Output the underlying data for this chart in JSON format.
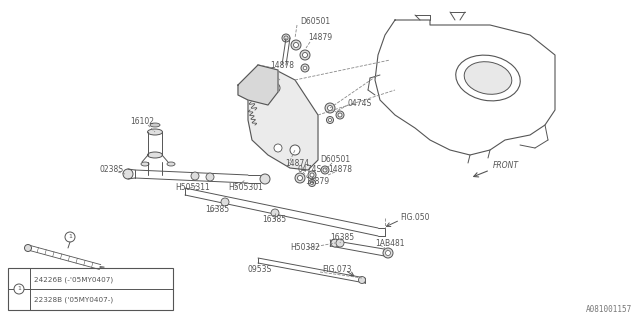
{
  "bg_color": "#ffffff",
  "line_color": "#555555",
  "dashed_color": "#888888",
  "fig_width": 6.4,
  "fig_height": 3.2,
  "watermark": "A081001157",
  "legend_text1": "24226B (-'05MY0407)",
  "legend_text2": "22328B ('05MY0407-)"
}
